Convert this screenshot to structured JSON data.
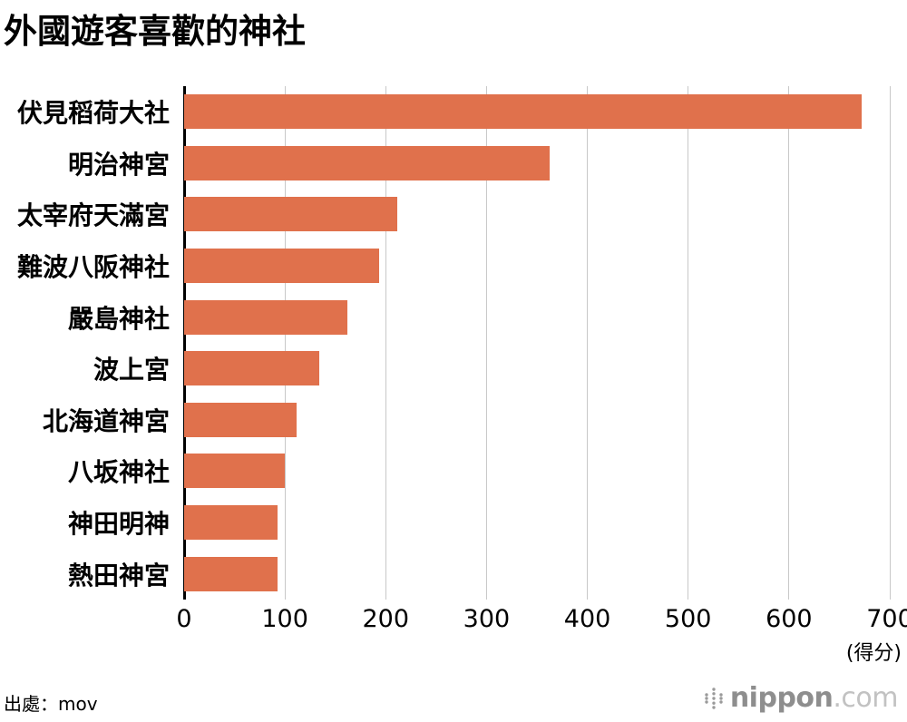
{
  "title": "外國遊客喜歡的神社",
  "source": "出處：mov",
  "footer_logo": {
    "name": "nippon",
    "tld": ".com"
  },
  "chart_data": {
    "type": "bar",
    "orientation": "horizontal",
    "title": "外國遊客喜歡的神社",
    "categories": [
      "伏見稻荷大社",
      "明治神宮",
      "太宰府天滿宮",
      "難波八阪神社",
      "嚴島神社",
      "波上宮",
      "北海道神宮",
      "八坂神社",
      "神田明神",
      "熱田神宮"
    ],
    "values": [
      672,
      363,
      211,
      193,
      162,
      134,
      112,
      100,
      93,
      93
    ],
    "xlabel_unit": "(得分)",
    "xlim": [
      0,
      700
    ],
    "xticks": [
      0,
      100,
      200,
      300,
      400,
      500,
      600,
      700
    ],
    "grid": true,
    "legend": false,
    "bar_color": "#e0714c",
    "gridline_color": "#c8c8c8",
    "axis_color": "#000000"
  }
}
